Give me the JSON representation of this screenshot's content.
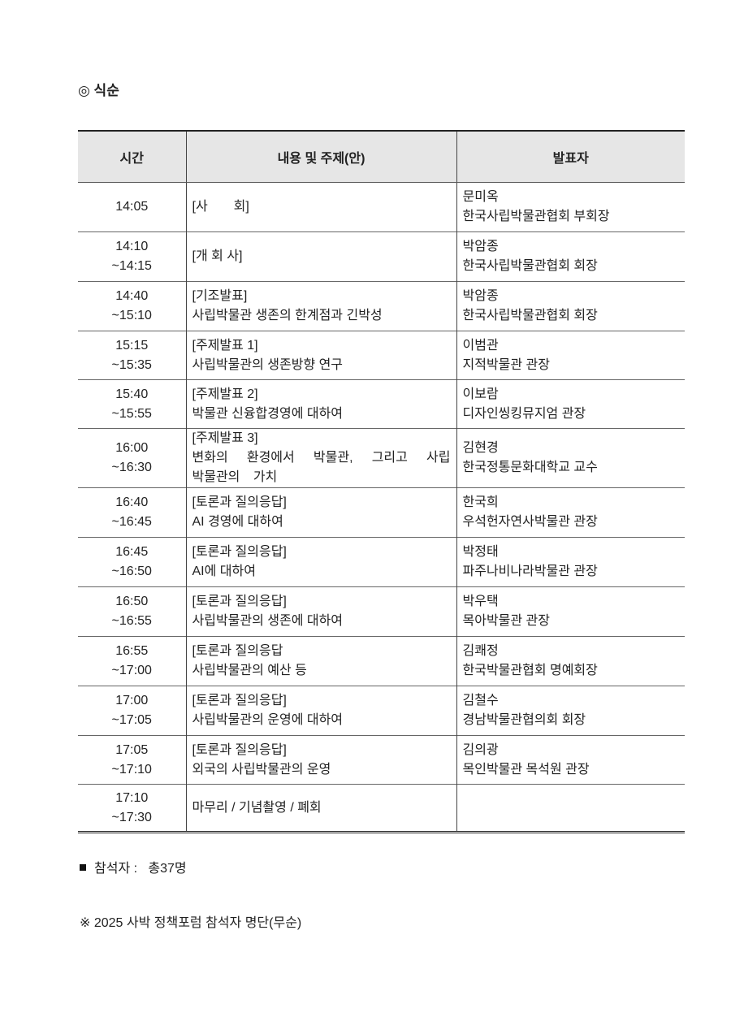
{
  "heading": "◎ 식순",
  "table": {
    "headers": [
      "시간",
      "내용 및 주제(안)",
      "발표자"
    ],
    "rows": [
      {
        "time": [
          "14:05"
        ],
        "content": [
          "[사　　회]"
        ],
        "speaker": [
          "문미옥",
          "한국사립박물관협회 부회장"
        ]
      },
      {
        "time": [
          "14:10",
          "~14:15"
        ],
        "content": [
          "[개 회 사]"
        ],
        "speaker": [
          "박암종",
          "한국사립박물관협회 회장"
        ]
      },
      {
        "time": [
          "14:40",
          "~15:10"
        ],
        "content": [
          "[기조발표]",
          "사립박물관 생존의 한계점과 긴박성"
        ],
        "speaker": [
          "박암종",
          "한국사립박물관협회 회장"
        ]
      },
      {
        "time": [
          "15:15",
          "~15:35"
        ],
        "content": [
          "[주제발표 1]",
          "사립박물관의 생존방향 연구"
        ],
        "speaker": [
          "이범관",
          "지적박물관 관장"
        ]
      },
      {
        "time": [
          "15:40",
          "~15:55"
        ],
        "content": [
          "[주제발표 2]",
          "박물관 신융합경영에 대하여"
        ],
        "speaker": [
          "이보람",
          "디자인씽킹뮤지엄 관장"
        ]
      },
      {
        "time": [
          "16:00",
          "~16:30"
        ],
        "content": [
          "[주제발표 3]",
          "변화의 환경에서 박물관, 그리고 사립 박물관의 가치"
        ],
        "speaker": [
          "김현경",
          "한국정통문화대학교 교수"
        ]
      },
      {
        "time": [
          "16:40",
          "~16:45"
        ],
        "content": [
          "[토론과 질의응답]",
          "AI 경영에 대하여"
        ],
        "speaker": [
          "한국희",
          "우석헌자연사박물관 관장"
        ]
      },
      {
        "time": [
          "16:45",
          "~16:50"
        ],
        "content": [
          "[토론과 질의응답]",
          "AI에 대하여"
        ],
        "speaker": [
          "박정태",
          "파주나비나라박물관 관장"
        ]
      },
      {
        "time": [
          "16:50",
          "~16:55"
        ],
        "content": [
          "[토론과 질의응답]",
          "사립박물관의 생존에 대하여"
        ],
        "speaker": [
          "박우택",
          "목아박물관 관장"
        ]
      },
      {
        "time": [
          "16:55",
          "~17:00"
        ],
        "content": [
          "[토론과 질의응답",
          "사립박물관의 예산 등"
        ],
        "speaker": [
          "김쾌정",
          "한국박물관협회 명예회장"
        ]
      },
      {
        "time": [
          "17:00",
          "~17:05"
        ],
        "content": [
          "[토론과 질의응답]",
          "사립박물관의 운영에 대하여"
        ],
        "speaker": [
          "김철수",
          "경남박물관협의회 회장"
        ]
      },
      {
        "time": [
          "17:05",
          "~17:10"
        ],
        "content": [
          "[토론과 질의응답]",
          "외국의 사립박물관의 운영"
        ],
        "speaker": [
          "김의광",
          "목인박물관 목석원 관장"
        ]
      },
      {
        "time": [
          "17:10",
          "~17:30"
        ],
        "content": [
          "마무리 / 기념촬영 / 폐회"
        ],
        "speaker": []
      }
    ]
  },
  "attendees": {
    "label": "참석자 :",
    "value": "총37명"
  },
  "list_note": "※ 2025 사박 정책포럼 참석자 명단(무순)"
}
